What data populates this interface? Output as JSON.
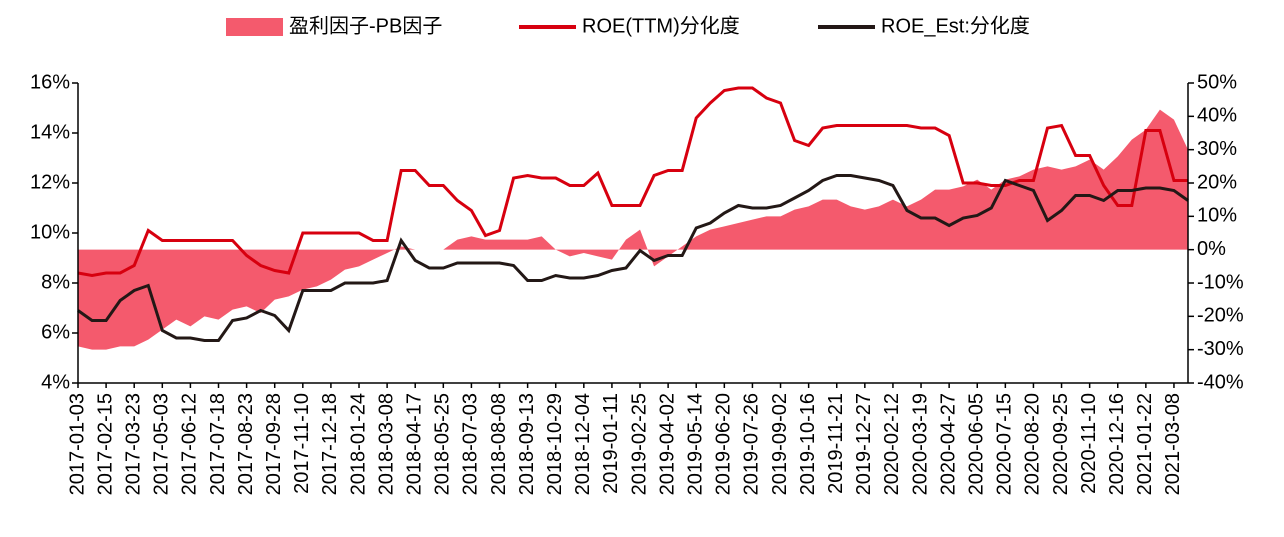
{
  "chart_data": {
    "type": "line",
    "categories": [
      "2017-01-03",
      null,
      "2017-02-15",
      null,
      "2017-03-23",
      null,
      "2017-05-03",
      null,
      "2017-06-12",
      null,
      "2017-07-18",
      null,
      "2017-08-23",
      null,
      "2017-09-28",
      null,
      "2017-11-10",
      null,
      "2017-12-18",
      null,
      "2018-01-24",
      null,
      "2018-03-08",
      null,
      "2018-04-17",
      null,
      "2018-05-25",
      null,
      "2018-07-03",
      null,
      "2018-08-08",
      null,
      "2018-09-13",
      null,
      "2018-10-29",
      null,
      "2018-12-04",
      null,
      "2019-01-11",
      null,
      "2019-02-25",
      null,
      "2019-04-02",
      null,
      "2019-05-14",
      null,
      "2019-06-20",
      null,
      "2019-07-26",
      null,
      "2019-09-02",
      null,
      "2019-10-16",
      null,
      "2019-11-21",
      null,
      "2019-12-27",
      null,
      "2020-02-12",
      null,
      "2020-03-19",
      null,
      "2020-04-27",
      null,
      "2020-06-05",
      null,
      "2020-07-15",
      null,
      "2020-08-20",
      null,
      "2020-09-25",
      null,
      "2020-11-10",
      null,
      "2020-12-16",
      null,
      "2021-01-22",
      null,
      "2021-03-08",
      null
    ],
    "series": [
      {
        "name": "盈利因子-PB因子",
        "type": "area",
        "axis": "y2",
        "color": "#f45a6d",
        "values": [
          -29,
          -30,
          -30,
          -29,
          -29,
          -27,
          -24,
          -21,
          -23,
          -20,
          -21,
          -18,
          -17,
          -19,
          -15,
          -14,
          -12,
          -11,
          -9,
          -6,
          -5,
          -3,
          -1,
          1,
          0,
          0,
          0,
          3,
          4,
          3,
          3,
          3,
          3,
          4,
          0,
          -2,
          -1,
          -2,
          -3,
          3,
          6,
          -5,
          -2,
          1,
          4,
          6,
          7,
          8,
          9,
          10,
          10,
          12,
          13,
          15,
          15,
          13,
          12,
          13,
          15,
          13,
          15,
          18,
          18,
          19,
          21,
          18,
          21,
          22,
          24,
          25,
          24,
          25,
          27,
          24,
          28,
          33,
          36,
          42,
          39,
          30
        ]
      },
      {
        "name": "ROE(TTM)分化度",
        "type": "line",
        "color": "#d7000f",
        "values": [
          8.4,
          8.3,
          8.4,
          8.4,
          8.7,
          10.1,
          9.7,
          9.7,
          9.7,
          9.7,
          9.7,
          9.7,
          9.1,
          8.7,
          8.5,
          8.4,
          10.0,
          10.0,
          10.0,
          10.0,
          10.0,
          9.7,
          9.7,
          12.5,
          12.5,
          11.9,
          11.9,
          11.3,
          10.9,
          9.9,
          10.1,
          12.2,
          12.3,
          12.2,
          12.2,
          11.9,
          11.9,
          12.4,
          11.1,
          11.1,
          11.1,
          12.3,
          12.5,
          12.5,
          14.6,
          15.2,
          15.7,
          15.8,
          15.8,
          15.4,
          15.2,
          13.7,
          13.5,
          14.2,
          14.3,
          14.3,
          14.3,
          14.3,
          14.3,
          14.3,
          14.2,
          14.2,
          13.9,
          12.0,
          12.0,
          11.9,
          11.9,
          12.1,
          12.1,
          14.2,
          14.3,
          13.1,
          13.1,
          11.9,
          11.1,
          11.1,
          14.1,
          14.1,
          12.1,
          12.1
        ]
      },
      {
        "name": "ROE_Est:分化度",
        "type": "line",
        "color": "#231816",
        "values": [
          6.9,
          6.5,
          6.5,
          7.3,
          7.7,
          7.9,
          6.1,
          5.8,
          5.8,
          5.7,
          5.7,
          6.5,
          6.6,
          6.9,
          6.7,
          6.1,
          7.7,
          7.7,
          7.7,
          8.0,
          8.0,
          8.0,
          8.1,
          9.7,
          8.9,
          8.6,
          8.6,
          8.8,
          8.8,
          8.8,
          8.8,
          8.7,
          8.1,
          8.1,
          8.3,
          8.2,
          8.2,
          8.3,
          8.5,
          8.6,
          9.3,
          8.9,
          9.1,
          9.1,
          10.2,
          10.4,
          10.8,
          11.1,
          11.0,
          11.0,
          11.1,
          11.4,
          11.7,
          12.1,
          12.3,
          12.3,
          12.2,
          12.1,
          11.9,
          10.9,
          10.6,
          10.6,
          10.3,
          10.6,
          10.7,
          11.0,
          12.1,
          11.9,
          11.7,
          10.5,
          10.9,
          11.5,
          11.5,
          11.3,
          11.7,
          11.7,
          11.8,
          11.8,
          11.7,
          11.3
        ]
      }
    ],
    "ylim": [
      4,
      16
    ],
    "yticks": [
      {
        "value": 4,
        "label": "4%"
      },
      {
        "value": 6,
        "label": "6%"
      },
      {
        "value": 8,
        "label": "8%"
      },
      {
        "value": 10,
        "label": "10%"
      },
      {
        "value": 12,
        "label": "12%"
      },
      {
        "value": 14,
        "label": "14%"
      },
      {
        "value": 16,
        "label": "16%"
      }
    ],
    "y2lim": [
      -40,
      50
    ],
    "y2ticks": [
      {
        "value": -40,
        "label": "-40%"
      },
      {
        "value": -30,
        "label": "-30%"
      },
      {
        "value": -20,
        "label": "-20%"
      },
      {
        "value": -10,
        "label": "-10%"
      },
      {
        "value": 0,
        "label": "0%"
      },
      {
        "value": 10,
        "label": "10%"
      },
      {
        "value": 20,
        "label": "20%"
      },
      {
        "value": 30,
        "label": "30%"
      },
      {
        "value": 40,
        "label": "40%"
      },
      {
        "value": 50,
        "label": "50%"
      }
    ],
    "grid": false,
    "legend": "top"
  }
}
